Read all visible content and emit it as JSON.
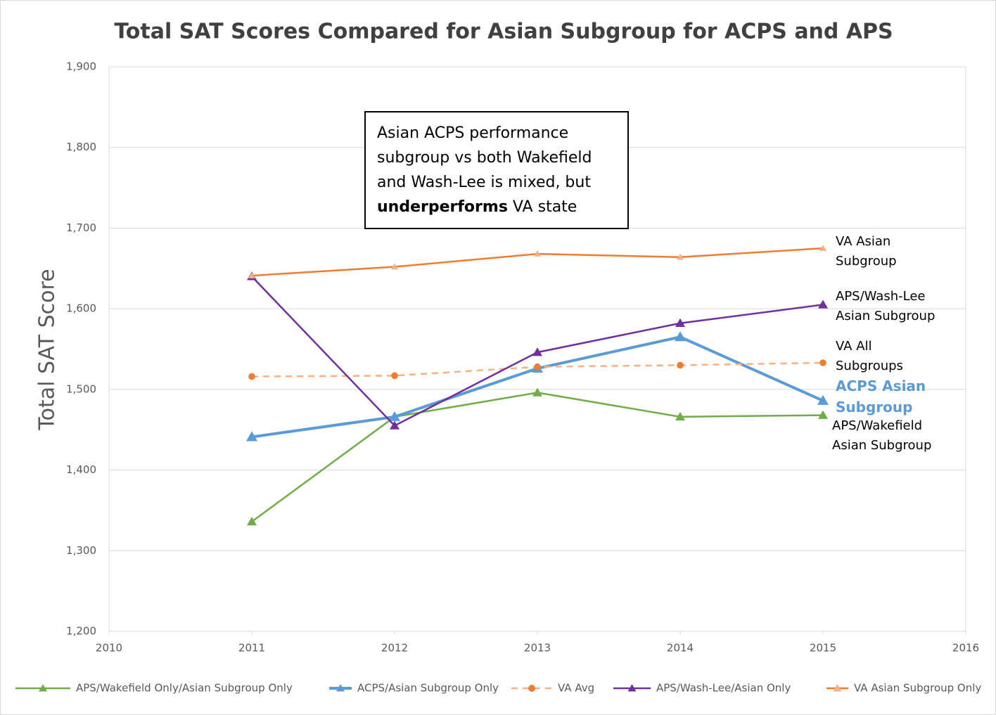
{
  "chart_data": {
    "type": "line",
    "title": "Total SAT Scores Compared for Asian Subgroup for ACPS and APS",
    "y_label": "Total SAT Score",
    "x": [
      2011,
      2012,
      2013,
      2014,
      2015
    ],
    "xlim": [
      2010,
      2016
    ],
    "xticks": [
      2010,
      2011,
      2012,
      2013,
      2014,
      2015,
      2016
    ],
    "ylim": [
      1200,
      1900
    ],
    "yticks": [
      {
        "value": 1200,
        "label": "1,200"
      },
      {
        "value": 1300,
        "label": "1,300"
      },
      {
        "value": 1400,
        "label": "1,400"
      },
      {
        "value": 1500,
        "label": "1,500"
      },
      {
        "value": 1600,
        "label": "1,600"
      },
      {
        "value": 1700,
        "label": "1,700"
      },
      {
        "value": 1800,
        "label": "1,800"
      },
      {
        "value": 1900,
        "label": "1,900"
      }
    ],
    "grid": true,
    "legend": "bottom",
    "annotation": {
      "text": "Asian ACPS performance subgroup vs both Wakefield and Wash-Lee is mixed, but ",
      "bold": "underperforms",
      "text_after": " VA state"
    },
    "series": [
      {
        "name": "APS/Wakefield Only/Asian Subgroup Only",
        "color": "#70ad47",
        "marker_color": "#70ad47",
        "marker": "triangle",
        "values": [
          1336,
          1466,
          1496,
          1466,
          1468
        ],
        "end_label": [
          "APS/Wakefield",
          "Asian Subgroup"
        ]
      },
      {
        "name": "ACPS/Asian Subgroup Only",
        "color": "#5b9bd5",
        "marker_color": "#5b9bd5",
        "marker": "triangle",
        "values": [
          1441,
          1466,
          1526,
          1565,
          1486
        ],
        "end_label": [
          "ACPS Asian",
          "Subgroup"
        ],
        "end_label_color": "#5b9bd5"
      },
      {
        "name": "VA Avg",
        "color": "#f4b183",
        "marker_color": "#ed7d31",
        "marker": "circle",
        "dashed": true,
        "values": [
          1516,
          1517,
          1528,
          1530,
          1533
        ],
        "end_label": [
          "VA All",
          "Subgroups"
        ]
      },
      {
        "name": "APS/Wash-Lee/Asian Only",
        "color": "#7030a0",
        "marker_color": "#7030a0",
        "marker": "triangle",
        "values": [
          1640,
          1455,
          1546,
          1582,
          1605
        ],
        "end_label": [
          "APS/Wash-Lee",
          "Asian Subgroup"
        ]
      },
      {
        "name": "VA Asian Subgroup Only",
        "color": "#ed7d31",
        "marker_color": "#f4b183",
        "marker": "triangle",
        "values": [
          1641,
          1652,
          1668,
          1664,
          1675
        ],
        "end_label": [
          "VA Asian",
          "Subgroup"
        ]
      }
    ]
  }
}
